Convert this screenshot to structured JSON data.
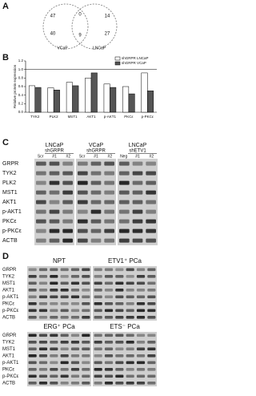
{
  "panel_labels": [
    "A",
    "B",
    "C",
    "D"
  ],
  "venn": {
    "numbers": [
      "47",
      "0",
      "14",
      "40",
      "9",
      "27"
    ],
    "labels": [
      "VCaP",
      "LNCaP"
    ]
  },
  "chart_data": {
    "type": "bar",
    "y_label": "Relative protein expression",
    "categories": [
      "TYK2",
      "PLK2",
      "MST1",
      "AKT1",
      "p-AKT1",
      "PKCε",
      "p-PKCε"
    ],
    "series": [
      {
        "name": "shGRPR LNCaP",
        "color": "#ffffff",
        "values": [
          0.62,
          0.57,
          0.7,
          0.8,
          0.66,
          0.6,
          0.92
        ]
      },
      {
        "name": "shGRPR VCaP",
        "color": "#555555",
        "values": [
          0.58,
          0.52,
          0.62,
          0.92,
          0.58,
          0.43,
          0.5
        ]
      }
    ],
    "ylim": [
      0,
      1.2
    ],
    "yticks": [
      {
        "value": 0,
        "label": "0.0"
      },
      {
        "value": 0.2,
        "label": "0.2"
      },
      {
        "value": 0.4,
        "label": "0.4"
      },
      {
        "value": 0.6,
        "label": "0.6"
      },
      {
        "value": 0.8,
        "label": "0.8"
      },
      {
        "value": 1,
        "label": "1.0"
      },
      {
        "value": 1.2,
        "label": "1.2"
      }
    ],
    "reference_line": 1,
    "legend": "top-right"
  },
  "blot_c": {
    "groups": [
      {
        "cell": "LNCaP",
        "construct": "shGRPR",
        "lanes": [
          "Scr",
          "#1",
          "#2"
        ]
      },
      {
        "cell": "VCaP",
        "construct": "shGRPR",
        "lanes": [
          "Scr",
          "#1",
          "#2"
        ]
      },
      {
        "cell": "LNCaP",
        "construct": "shETV1",
        "lanes": [
          "Neg",
          "#1",
          "#2"
        ]
      }
    ],
    "rows": [
      "GRPR",
      "TYK2",
      "PLK2",
      "MST1",
      "AKT1",
      "p-AKT1",
      "PKCε",
      "p-PKCε",
      "ACTB"
    ]
  },
  "blot_d": {
    "panels": [
      "NPT",
      "ETV1⁺ PCa",
      "ERG⁺ PCa",
      "ETS⁻ PCa"
    ],
    "rows": [
      "GRPR",
      "TYK2",
      "MST1",
      "AKT1",
      "p-AKT1",
      "PKCε",
      "p-PKCε",
      "ACTB"
    ]
  }
}
